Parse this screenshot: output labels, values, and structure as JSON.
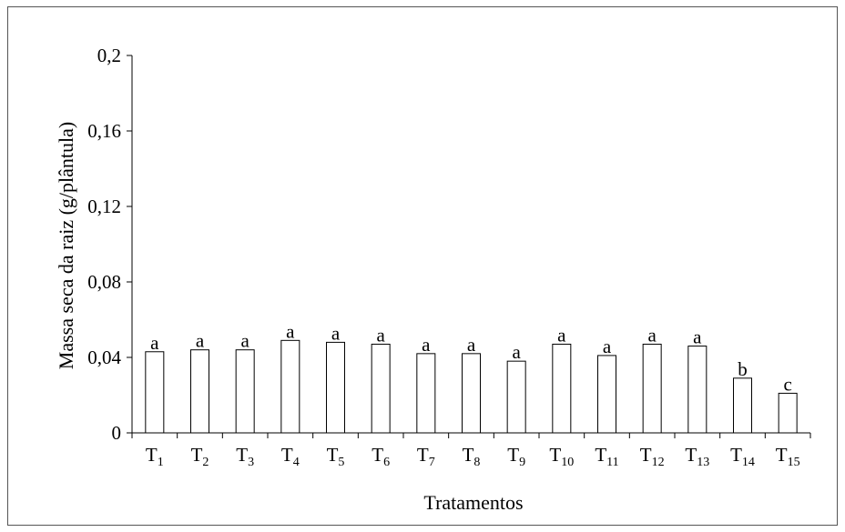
{
  "chart_data": {
    "type": "bar",
    "title": "",
    "xlabel": "Tratamentos",
    "ylabel": "Massa seca da raiz (g/plântula)",
    "ylim": [
      0,
      0.2
    ],
    "yticks": [
      0,
      0.04,
      0.08,
      0.12,
      0.16,
      0.2
    ],
    "ytick_labels": [
      "0",
      "0,04",
      "0,08",
      "0,12",
      "0,16",
      "0,2"
    ],
    "categories": [
      {
        "base": "T",
        "sub": "1"
      },
      {
        "base": "T",
        "sub": "2"
      },
      {
        "base": "T",
        "sub": "3"
      },
      {
        "base": "T",
        "sub": "4"
      },
      {
        "base": "T",
        "sub": "5"
      },
      {
        "base": "T",
        "sub": "6"
      },
      {
        "base": "T",
        "sub": "7"
      },
      {
        "base": "T",
        "sub": "8"
      },
      {
        "base": "T",
        "sub": "9"
      },
      {
        "base": "T",
        "sub": "10"
      },
      {
        "base": "T",
        "sub": "11"
      },
      {
        "base": "T",
        "sub": "12"
      },
      {
        "base": "T",
        "sub": "13"
      },
      {
        "base": "T",
        "sub": "14"
      },
      {
        "base": "T",
        "sub": "15"
      }
    ],
    "values": [
      0.043,
      0.044,
      0.044,
      0.049,
      0.048,
      0.047,
      0.042,
      0.042,
      0.038,
      0.047,
      0.041,
      0.047,
      0.046,
      0.029,
      0.021
    ],
    "annotations": [
      "a",
      "a",
      "a",
      "a",
      "a",
      "a",
      "a",
      "a",
      "a",
      "a",
      "a",
      "a",
      "a",
      "b",
      "c"
    ],
    "grid": false,
    "bar_fill": "#ffffff",
    "bar_stroke": "#000000"
  }
}
